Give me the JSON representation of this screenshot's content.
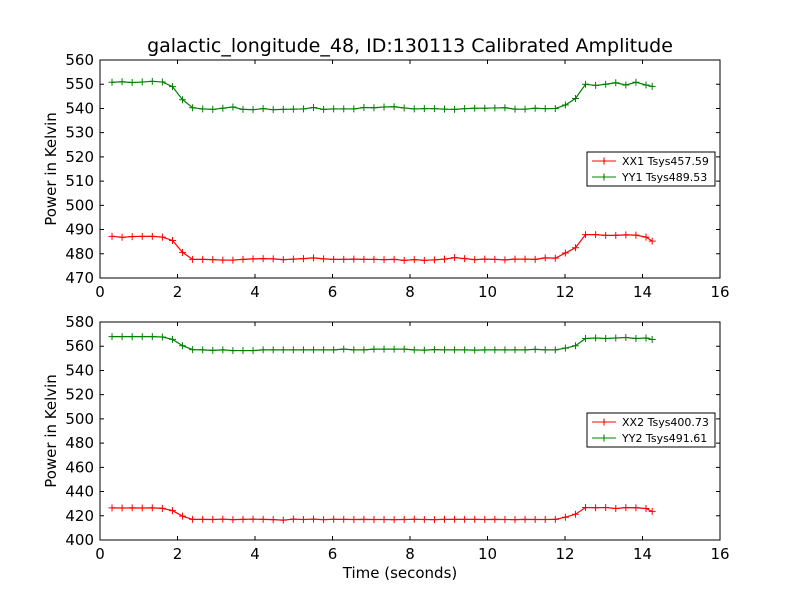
{
  "title": "galactic_longitude_48, ID:130113 Calibrated Amplitude",
  "chart_data": [
    {
      "type": "line",
      "ylabel": "Power in Kelvin",
      "xlabel": "",
      "xlim": [
        0,
        16
      ],
      "ylim": [
        470,
        560
      ],
      "xticks": [
        0,
        2,
        4,
        6,
        8,
        10,
        12,
        14,
        16
      ],
      "yticks": [
        470,
        480,
        490,
        500,
        510,
        520,
        530,
        540,
        550,
        560
      ],
      "legend_position": "center-right",
      "x": [
        0.31,
        0.57,
        0.83,
        1.09,
        1.35,
        1.61,
        1.87,
        2.13,
        2.39,
        2.65,
        2.91,
        3.17,
        3.43,
        3.69,
        3.95,
        4.21,
        4.47,
        4.73,
        4.99,
        5.25,
        5.51,
        5.77,
        6.03,
        6.29,
        6.55,
        6.81,
        7.07,
        7.33,
        7.59,
        7.85,
        8.11,
        8.37,
        8.63,
        8.89,
        9.15,
        9.41,
        9.67,
        9.93,
        10.19,
        10.45,
        10.71,
        10.97,
        11.23,
        11.49,
        11.75,
        12.01,
        12.27,
        12.53,
        12.79,
        13.05,
        13.31,
        13.57,
        13.83,
        14.09,
        14.25
      ],
      "series": [
        {
          "name": "XX1 Tsys457.59",
          "color": "#ff0000",
          "values": [
            487.2,
            486.8,
            487.1,
            487.2,
            487.2,
            486.9,
            485.5,
            480.6,
            477.7,
            477.7,
            477.6,
            477.4,
            477.4,
            477.7,
            477.9,
            478.0,
            477.9,
            477.6,
            477.8,
            478.0,
            478.3,
            477.9,
            477.7,
            477.7,
            477.8,
            477.7,
            477.7,
            477.6,
            477.7,
            477.3,
            477.6,
            477.3,
            477.5,
            477.8,
            478.4,
            478.0,
            477.6,
            477.8,
            477.7,
            477.5,
            477.8,
            477.8,
            477.7,
            478.3,
            478.2,
            480.3,
            482.5,
            487.9,
            487.9,
            487.6,
            487.6,
            487.8,
            487.7,
            486.9,
            485.2
          ]
        },
        {
          "name": "YY1 Tsys489.53",
          "color": "#008000",
          "values": [
            550.8,
            551.0,
            550.7,
            550.9,
            551.2,
            550.9,
            549.0,
            543.6,
            540.3,
            539.8,
            539.6,
            540.1,
            540.6,
            539.6,
            539.5,
            539.9,
            539.5,
            539.6,
            539.7,
            539.8,
            540.4,
            539.6,
            539.8,
            539.8,
            539.8,
            540.4,
            540.3,
            540.6,
            540.7,
            540.2,
            539.8,
            539.9,
            539.9,
            539.7,
            539.6,
            539.9,
            540.1,
            540.1,
            540.2,
            540.3,
            539.7,
            539.7,
            540.1,
            539.9,
            540.0,
            541.4,
            544.1,
            550.0,
            549.5,
            550.0,
            550.6,
            549.7,
            550.8,
            549.7,
            549.1
          ]
        }
      ]
    },
    {
      "type": "line",
      "ylabel": "Power in Kelvin",
      "xlabel": "Time (seconds)",
      "xlim": [
        0,
        16
      ],
      "ylim": [
        400,
        580
      ],
      "xticks": [
        0,
        2,
        4,
        6,
        8,
        10,
        12,
        14,
        16
      ],
      "yticks": [
        400,
        420,
        440,
        460,
        480,
        500,
        520,
        540,
        560,
        580
      ],
      "legend_position": "center-right",
      "x": [
        0.31,
        0.57,
        0.83,
        1.09,
        1.35,
        1.61,
        1.87,
        2.13,
        2.39,
        2.65,
        2.91,
        3.17,
        3.43,
        3.69,
        3.95,
        4.21,
        4.47,
        4.73,
        4.99,
        5.25,
        5.51,
        5.77,
        6.03,
        6.29,
        6.55,
        6.81,
        7.07,
        7.33,
        7.59,
        7.85,
        8.11,
        8.37,
        8.63,
        8.89,
        9.15,
        9.41,
        9.67,
        9.93,
        10.19,
        10.45,
        10.71,
        10.97,
        11.23,
        11.49,
        11.75,
        12.01,
        12.27,
        12.53,
        12.79,
        13.05,
        13.31,
        13.57,
        13.83,
        14.09,
        14.25
      ],
      "series": [
        {
          "name": "XX2 Tsys400.73",
          "color": "#ff0000",
          "values": [
            426.5,
            426.4,
            426.5,
            426.4,
            426.5,
            426.1,
            424.3,
            419.7,
            417.0,
            417.0,
            416.9,
            417.2,
            416.8,
            417.0,
            417.2,
            417.0,
            416.8,
            416.4,
            417.2,
            416.9,
            417.2,
            416.8,
            417.1,
            417.0,
            416.9,
            417.0,
            416.9,
            416.9,
            416.8,
            416.9,
            417.1,
            416.9,
            416.8,
            417.0,
            417.0,
            417.0,
            417.0,
            416.9,
            417.0,
            416.9,
            416.8,
            417.0,
            416.9,
            416.9,
            417.0,
            418.8,
            421.3,
            426.8,
            426.6,
            426.8,
            426.0,
            426.7,
            426.6,
            426.0,
            423.6
          ]
        },
        {
          "name": "YY2 Tsys491.61",
          "color": "#008000",
          "values": [
            567.9,
            567.9,
            567.9,
            567.9,
            567.9,
            567.6,
            565.7,
            560.4,
            557.2,
            557.0,
            556.6,
            557.0,
            556.4,
            556.4,
            556.4,
            557.0,
            557.0,
            557.0,
            557.0,
            557.0,
            557.0,
            557.0,
            557.0,
            557.6,
            557.0,
            557.0,
            557.6,
            557.6,
            557.6,
            557.6,
            557.0,
            556.8,
            557.2,
            557.0,
            557.0,
            557.0,
            556.8,
            557.0,
            557.0,
            557.0,
            557.0,
            557.0,
            557.4,
            557.0,
            557.0,
            558.4,
            560.4,
            566.4,
            566.8,
            566.4,
            566.8,
            567.2,
            566.4,
            566.8,
            565.6
          ]
        }
      ]
    }
  ]
}
